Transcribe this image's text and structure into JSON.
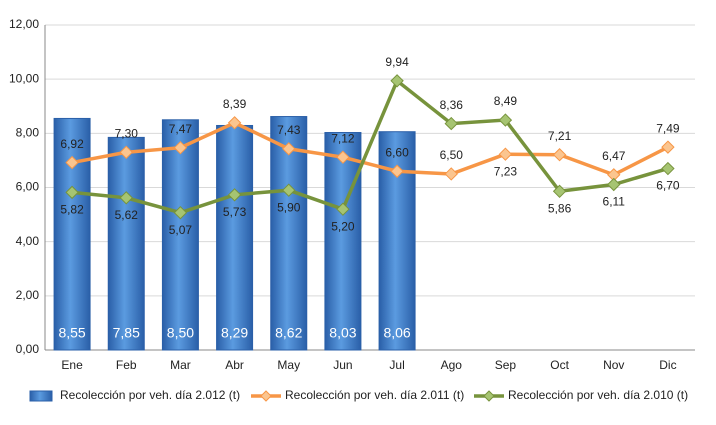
{
  "chart_data": {
    "type": "combo",
    "categories": [
      "Ene",
      "Feb",
      "Mar",
      "Abr",
      "May",
      "Jun",
      "Jul",
      "Ago",
      "Sep",
      "Oct",
      "Nov",
      "Dic"
    ],
    "ylim": [
      0,
      12
    ],
    "yticks": [
      {
        "value": 0,
        "label": "0,00"
      },
      {
        "value": 2,
        "label": "2,00"
      },
      {
        "value": 4,
        "label": "4,00"
      },
      {
        "value": 6,
        "label": "6,00"
      },
      {
        "value": 8,
        "label": "8,00"
      },
      {
        "value": 10,
        "label": "10,00"
      },
      {
        "value": 12,
        "label": "12,00"
      }
    ],
    "grid": true,
    "legend": "bottom",
    "series": [
      {
        "name": "Recolección por veh. día 2.012 (t)",
        "type": "bar",
        "color": "#3a78c8",
        "values": [
          8.55,
          7.85,
          8.5,
          8.29,
          8.62,
          8.03,
          8.06,
          null,
          null,
          null,
          null,
          null
        ],
        "value_labels": [
          "8,55",
          "7,85",
          "8,50",
          "8,29",
          "8,62",
          "8,03",
          "8,06",
          null,
          null,
          null,
          null,
          null
        ]
      },
      {
        "name": "Recolección por veh. día 2.011 (t)",
        "type": "line",
        "color": "#f79646",
        "values": [
          6.92,
          7.3,
          7.47,
          8.39,
          7.43,
          7.12,
          6.6,
          6.5,
          7.23,
          7.21,
          6.47,
          7.49
        ],
        "value_labels": [
          "6,92",
          "7,30",
          "7,47",
          "8,39",
          "7,43",
          "7,12",
          "6,60",
          "6,50",
          "7,23",
          "7,21",
          "6,47",
          "7,49"
        ]
      },
      {
        "name": "Recolección por veh. día 2.010 (t)",
        "type": "line",
        "color": "#77933c",
        "values": [
          5.82,
          5.62,
          5.07,
          5.73,
          5.9,
          5.2,
          9.94,
          8.36,
          8.49,
          5.86,
          6.11,
          6.7
        ],
        "value_labels": [
          "5,82",
          "5,62",
          "5,07",
          "5,73",
          "5,90",
          "5,20",
          "9,94",
          "8,36",
          "8,49",
          "5,86",
          "6,11",
          "6,70"
        ]
      }
    ]
  }
}
